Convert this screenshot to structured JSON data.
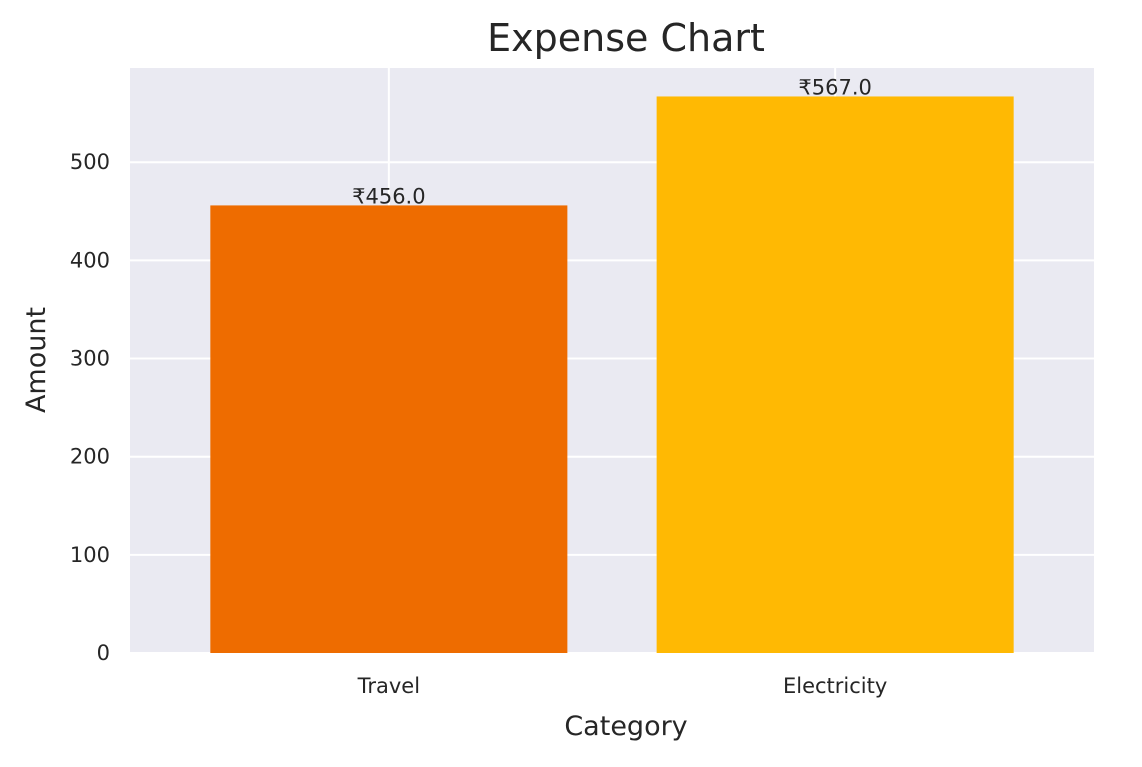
{
  "chart_data": {
    "type": "bar",
    "title": "Expense Chart",
    "xlabel": "Category",
    "ylabel": "Amount",
    "categories": [
      "Travel",
      "Electricity"
    ],
    "values": [
      456.0,
      567.0
    ],
    "value_labels": [
      "₹456.0",
      "₹567.0"
    ],
    "bar_colors": [
      "#EE6C00",
      "#FFB903"
    ],
    "ylim": [
      0,
      596
    ],
    "yticks": [
      0,
      100,
      200,
      300,
      400,
      500
    ],
    "ytick_labels": [
      "0",
      "100",
      "200",
      "300",
      "400",
      "500"
    ],
    "grid": true,
    "background_color": "#EAEAF2",
    "grid_color": "#FFFFFF"
  }
}
